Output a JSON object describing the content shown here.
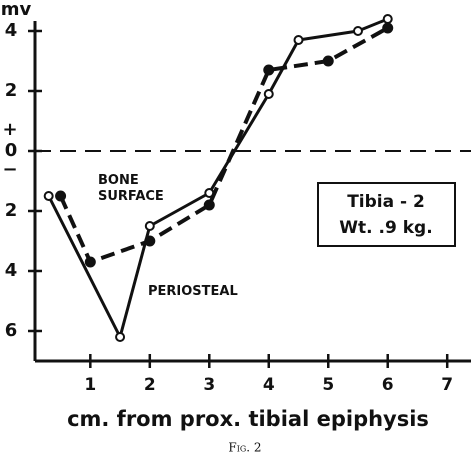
{
  "chart_data": {
    "type": "line",
    "y_label": "mv",
    "x_label": "cm. from prox. tibial epiphysis",
    "caption": "Fig. 2",
    "plus_sign": "+",
    "minus_sign": "−",
    "box_text": [
      "Tibia - 2",
      "Wt. .9 kg."
    ],
    "xlim": [
      0.07,
      7.4
    ],
    "ylim": [
      -7,
      4.6
    ],
    "xticks": [
      1,
      2,
      3,
      4,
      5,
      6,
      7
    ],
    "yticks": [
      4,
      2,
      0,
      {
        "value": -2,
        "label": "2"
      },
      {
        "value": -4,
        "label": "4"
      },
      {
        "value": -6,
        "label": "6"
      }
    ],
    "series": [
      {
        "name": "BONE SURFACE",
        "color": "#111111",
        "style": "solid",
        "marker": "open",
        "x": [
          0.3,
          1.5,
          2.0,
          3.0,
          4.0,
          4.5,
          5.5,
          6.0
        ],
        "values": [
          -1.5,
          -6.2,
          -2.5,
          -1.4,
          1.9,
          3.7,
          4.0,
          4.4
        ]
      },
      {
        "name": "PERIOSTEAL",
        "color": "#111111",
        "style": "dashed",
        "marker": "filled",
        "x": [
          0.5,
          1.0,
          2.0,
          3.0,
          4.0,
          5.0,
          6.0
        ],
        "values": [
          -1.5,
          -3.7,
          -3.0,
          -1.8,
          2.7,
          3.0,
          4.1
        ]
      }
    ]
  }
}
